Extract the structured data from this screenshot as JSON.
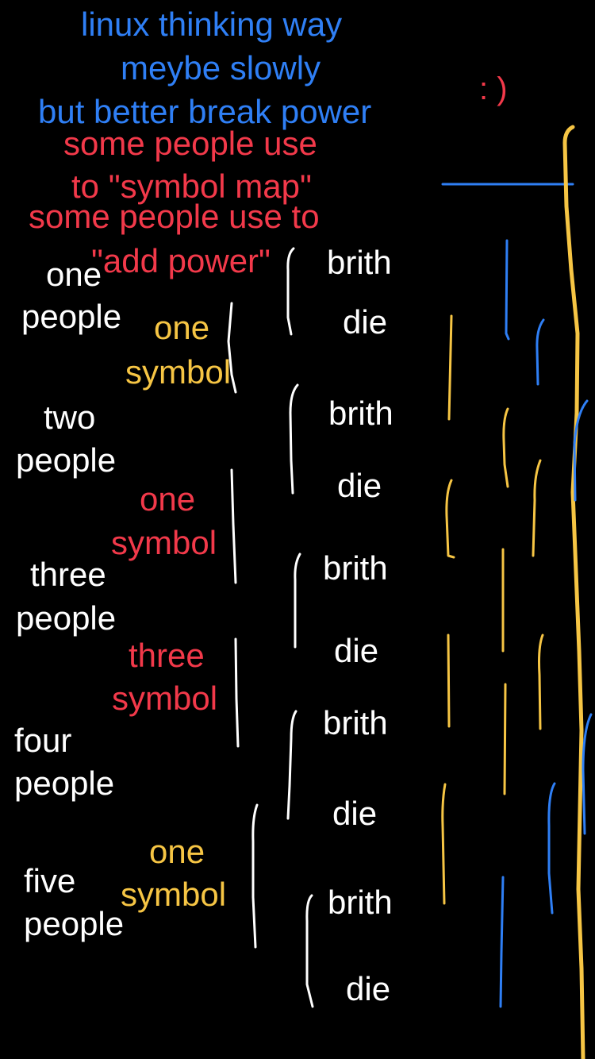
{
  "header": {
    "line1": "linux thinking way",
    "line2": "meybe slowly",
    "line3": "but better break power",
    "smiley": ": )"
  },
  "notes": {
    "symbol_map_1": "some people use",
    "symbol_map_2": "to \"symbol map\"",
    "add_power_1": "some people use to",
    "add_power_2": "\"add power\""
  },
  "groups": [
    {
      "people_line1": "one",
      "people_line2": "people",
      "symbol_line1": "one",
      "symbol_line2": "symbol"
    },
    {
      "people_line1": "two",
      "people_line2": "people",
      "symbol_line1": "one",
      "symbol_line2": "symbol"
    },
    {
      "people_line1": "three",
      "people_line2": "people",
      "symbol_line1": "three",
      "symbol_line2": "symbol"
    },
    {
      "people_line1": "four",
      "people_line2": "people"
    },
    {
      "people_line1": "five",
      "people_line2": "people",
      "symbol_line1": "one",
      "symbol_line2": "symbol"
    }
  ],
  "cycles": [
    {
      "start": "brith",
      "end": "die"
    },
    {
      "start": "brith",
      "end": "die"
    },
    {
      "start": "brith",
      "end": "die"
    },
    {
      "start": "brith",
      "end": "die"
    },
    {
      "start": "brith",
      "end": "die"
    }
  ],
  "colors": {
    "background": "#000000",
    "blue": "#2f7ff5",
    "red": "#f2394a",
    "white": "#ffffff",
    "yellow": "#f6c544"
  }
}
